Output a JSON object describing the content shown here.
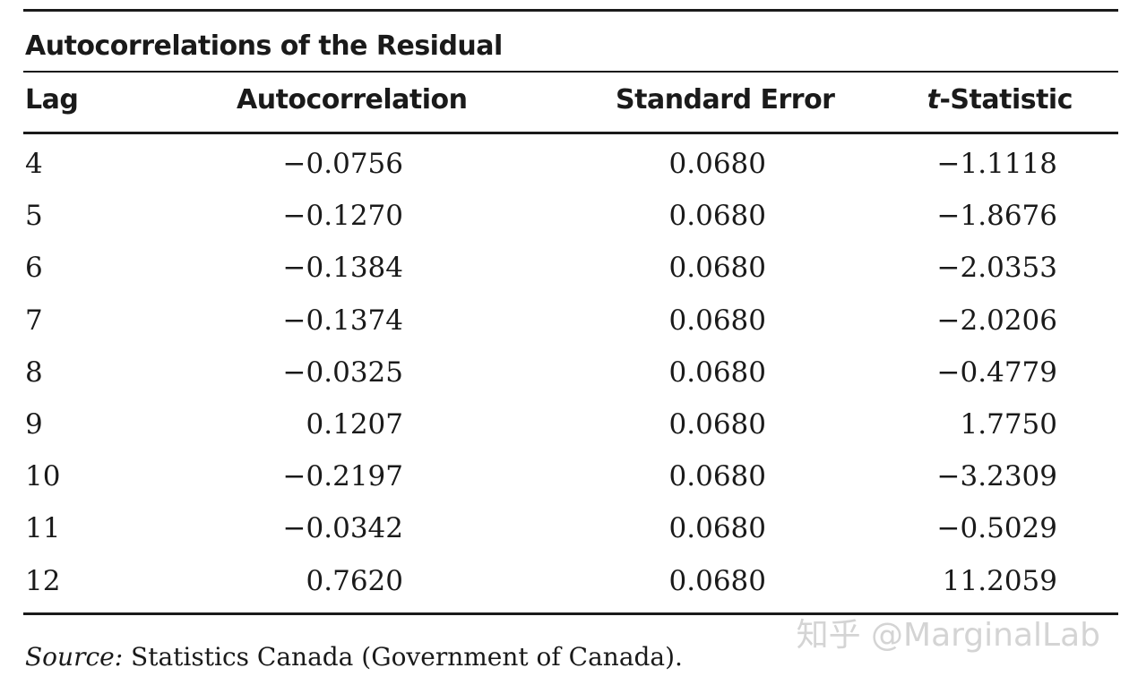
{
  "table": {
    "title": "Autocorrelations of the Residual",
    "headers": {
      "lag": "Lag",
      "autocorrelation": "Autocorrelation",
      "standard_error": "Standard Error",
      "t_prefix": "t",
      "t_suffix": "-Statistic"
    },
    "rows": [
      {
        "lag": "4",
        "autocorrelation": "−0.0756",
        "standard_error": "0.0680",
        "t_statistic": "−1.1118"
      },
      {
        "lag": "5",
        "autocorrelation": "−0.1270",
        "standard_error": "0.0680",
        "t_statistic": "−1.8676"
      },
      {
        "lag": "6",
        "autocorrelation": "−0.1384",
        "standard_error": "0.0680",
        "t_statistic": "−2.0353"
      },
      {
        "lag": "7",
        "autocorrelation": "−0.1374",
        "standard_error": "0.0680",
        "t_statistic": "−2.0206"
      },
      {
        "lag": "8",
        "autocorrelation": "−0.0325",
        "standard_error": "0.0680",
        "t_statistic": "−0.4779"
      },
      {
        "lag": "9",
        "autocorrelation": "0.1207",
        "standard_error": "0.0680",
        "t_statistic": "1.7750"
      },
      {
        "lag": "10",
        "autocorrelation": "−0.2197",
        "standard_error": "0.0680",
        "t_statistic": "−3.2309"
      },
      {
        "lag": "11",
        "autocorrelation": "−0.0342",
        "standard_error": "0.0680",
        "t_statistic": "−0.5029"
      },
      {
        "lag": "12",
        "autocorrelation": "0.7620",
        "standard_error": "0.0680",
        "t_statistic": "11.2059"
      }
    ]
  },
  "source": {
    "label": "Source:",
    "text": " Statistics Canada (Government of Canada)."
  },
  "watermark": {
    "text": "知乎 @MarginalLab"
  }
}
